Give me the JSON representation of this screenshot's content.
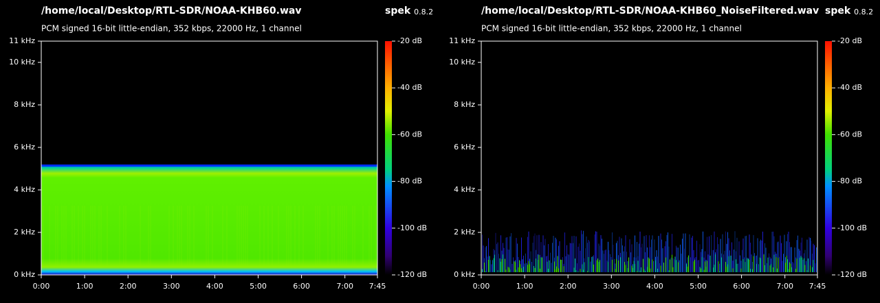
{
  "chart_data": [
    {
      "type": "spectrogram",
      "title": "/home/local/Desktop/RTL-SDR/NOAA-KHB60.wav",
      "app": "spek",
      "version": "0.8.2",
      "subtitle": "PCM signed 16-bit little-endian, 352 kbps, 22000 Hz, 1 channel",
      "xlim": [
        0,
        7.75
      ],
      "xticks": [
        {
          "value": 0,
          "label": "0:00"
        },
        {
          "value": 1,
          "label": "1:00"
        },
        {
          "value": 2,
          "label": "2:00"
        },
        {
          "value": 3,
          "label": "3:00"
        },
        {
          "value": 4,
          "label": "4:00"
        },
        {
          "value": 5,
          "label": "5:00"
        },
        {
          "value": 6,
          "label": "6:00"
        },
        {
          "value": 7,
          "label": "7:00"
        },
        {
          "value": 7.75,
          "label": "7:45"
        }
      ],
      "ylim": [
        0,
        11
      ],
      "yticks": [
        {
          "value": 0,
          "label": "0 kHz"
        },
        {
          "value": 2,
          "label": "2 kHz"
        },
        {
          "value": 4,
          "label": "4 kHz"
        },
        {
          "value": 6,
          "label": "6 kHz"
        },
        {
          "value": 8,
          "label": "8 kHz"
        },
        {
          "value": 10,
          "label": "10 kHz"
        },
        {
          "value": 11,
          "label": "11 kHz"
        }
      ],
      "zlim": [
        -120,
        -20
      ],
      "zticks": [
        {
          "value": -20,
          "label": "-20 dB"
        },
        {
          "value": -40,
          "label": "-40 dB"
        },
        {
          "value": -60,
          "label": "-60 dB"
        },
        {
          "value": -80,
          "label": "-80 dB"
        },
        {
          "value": -100,
          "label": "-100 dB"
        },
        {
          "value": -120,
          "label": "-120 dB"
        }
      ]
    },
    {
      "type": "spectrogram",
      "title": "/home/local/Desktop/RTL-SDR/NOAA-KHB60_NoiseFiltered.wav",
      "app": "spek",
      "version": "0.8.2",
      "subtitle": "PCM signed 16-bit little-endian, 352 kbps, 22000 Hz, 1 channel",
      "xlim": [
        0,
        7.75
      ],
      "xticks": [
        {
          "value": 0,
          "label": "0:00"
        },
        {
          "value": 1,
          "label": "1:00"
        },
        {
          "value": 2,
          "label": "2:00"
        },
        {
          "value": 3,
          "label": "3:00"
        },
        {
          "value": 4,
          "label": "4:00"
        },
        {
          "value": 5,
          "label": "5:00"
        },
        {
          "value": 6,
          "label": "6:00"
        },
        {
          "value": 7,
          "label": "7:00"
        },
        {
          "value": 7.75,
          "label": "7:45"
        }
      ],
      "ylim": [
        0,
        11
      ],
      "yticks": [
        {
          "value": 0,
          "label": "0 kHz"
        },
        {
          "value": 2,
          "label": "2 kHz"
        },
        {
          "value": 4,
          "label": "4 kHz"
        },
        {
          "value": 6,
          "label": "6 kHz"
        },
        {
          "value": 8,
          "label": "8 kHz"
        },
        {
          "value": 10,
          "label": "10 kHz"
        },
        {
          "value": 11,
          "label": "11 kHz"
        }
      ],
      "zlim": [
        -120,
        -20
      ],
      "zticks": [
        {
          "value": -20,
          "label": "-20 dB"
        },
        {
          "value": -40,
          "label": "-40 dB"
        },
        {
          "value": -60,
          "label": "-60 dB"
        },
        {
          "value": -80,
          "label": "-80 dB"
        },
        {
          "value": -100,
          "label": "-100 dB"
        },
        {
          "value": -120,
          "label": "-120 dB"
        }
      ]
    }
  ]
}
